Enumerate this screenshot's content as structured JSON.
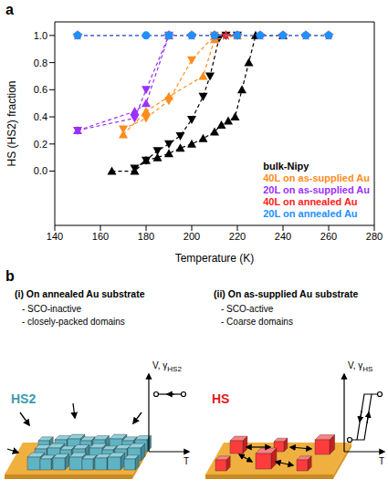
{
  "panel_a_label": "a",
  "chart_data": {
    "type": "line",
    "x_label": "Temperature (K)",
    "y_label": "HS (HS2) fraction",
    "xlim": [
      140,
      280
    ],
    "xticks": [
      140,
      160,
      180,
      200,
      220,
      240,
      260,
      280
    ],
    "ylim": [
      -0.4,
      1.1
    ],
    "yticks": [
      {
        "value": 0,
        "label": "0.0"
      },
      0.2,
      0.4,
      0.6,
      0.8,
      {
        "value": 1,
        "label": "1.0"
      }
    ],
    "legend": "lower right",
    "series": [
      {
        "name": "bulk-Nipy",
        "color": "#000000",
        "marker": "triangle-down",
        "line_style": "dashed",
        "x": [
          175,
          180,
          185,
          190,
          195,
          200,
          205,
          208,
          212,
          215,
          220
        ],
        "values": [
          0.02,
          0.08,
          0.15,
          0.2,
          0.26,
          0.38,
          0.55,
          0.7,
          0.98,
          1.0,
          1.0
        ]
      },
      {
        "name": "bulk-Nipy",
        "color": "#000000",
        "marker": "triangle-up",
        "line_style": "dashed",
        "x": [
          165,
          175,
          180,
          185,
          190,
          195,
          200,
          205,
          210,
          213,
          216,
          219,
          222,
          225,
          228,
          240
        ],
        "values": [
          0.0,
          0.0,
          0.08,
          0.1,
          0.13,
          0.17,
          0.2,
          0.24,
          0.29,
          0.34,
          0.37,
          0.4,
          0.6,
          0.8,
          1.0,
          1.0
        ]
      },
      {
        "name": "40L on as-supplied Au",
        "color": "#ff8c1a",
        "marker": "triangle-down",
        "line_style": "dashed",
        "x": [
          170,
          180,
          190,
          200,
          210
        ],
        "values": [
          0.31,
          0.39,
          0.52,
          0.82,
          1.0
        ]
      },
      {
        "name": "40L on as-supplied Au",
        "color": "#ff8c1a",
        "marker": "triangle-up",
        "line_style": "dashed",
        "x": [
          170,
          180,
          190,
          205,
          210,
          220
        ],
        "values": [
          0.27,
          0.44,
          0.55,
          0.7,
          0.97,
          1.0
        ]
      },
      {
        "name": "20L on as-supplied Au",
        "color": "#9b30ff",
        "marker": "triangle-down",
        "line_style": "dashed",
        "x": [
          150,
          175,
          180,
          190
        ],
        "values": [
          0.3,
          0.39,
          0.6,
          1.0
        ]
      },
      {
        "name": "20L on as-supplied Au",
        "color": "#9b30ff",
        "marker": "triangle-up",
        "line_style": "dashed",
        "x": [
          150,
          175,
          180,
          190
        ],
        "values": [
          0.3,
          0.44,
          0.5,
          1.0
        ]
      },
      {
        "name": "40L on annealed Au",
        "color": "#ff2020",
        "marker": "star",
        "line_style": "dashed",
        "x": [
          150,
          190,
          200,
          210,
          215,
          220,
          230,
          240,
          250,
          260
        ],
        "values": [
          1,
          1,
          1,
          1,
          1,
          1,
          1,
          1,
          1,
          1
        ]
      },
      {
        "name": "20L on annealed Au",
        "color": "#1e90ff",
        "marker": "circle",
        "line_style": "dashed",
        "x": [
          150,
          180,
          190,
          200,
          210,
          220,
          230,
          240,
          250,
          260
        ],
        "values": [
          1,
          1,
          1,
          1,
          1,
          1,
          1,
          1,
          1,
          1
        ]
      }
    ]
  },
  "diagram": {
    "label": "b",
    "panels": [
      {
        "title": "(i) On annealed Au substrate",
        "bullets": [
          "- SCO-inactive",
          "- closely-packed domains"
        ],
        "domain_label": "HS2",
        "plot_y_label": "V, γ",
        "plot_y_label_sub": "HS2",
        "plot_x_label": "T"
      },
      {
        "title": "(ii) On as-supplied Au substrate",
        "bullets": [
          "- SCO-active",
          "- Coarse domains"
        ],
        "domain_label": "HS",
        "plot_y_label": "V, γ",
        "plot_y_label_sub": "HS",
        "plot_x_label": "T"
      }
    ]
  }
}
